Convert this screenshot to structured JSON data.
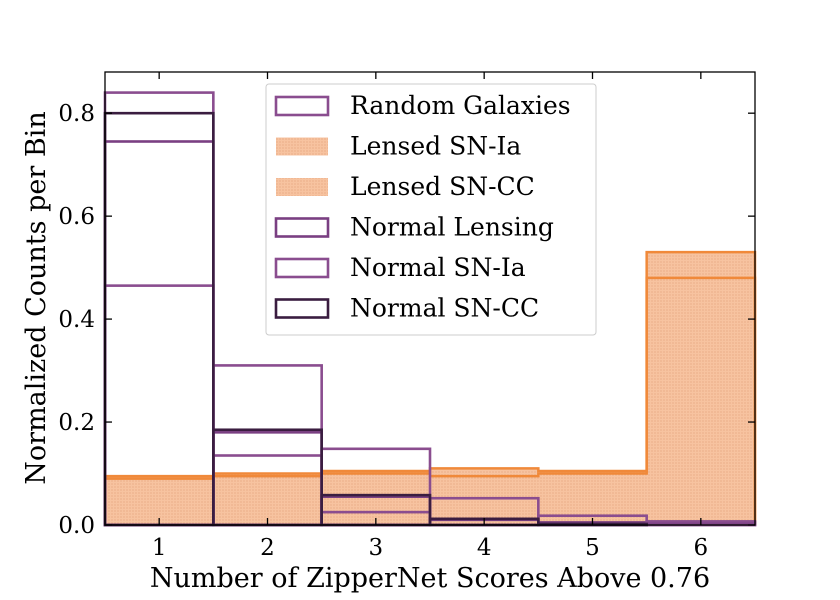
{
  "chart_data": {
    "type": "histogram",
    "title": "",
    "xlabel": "Number of ZipperNet Scores Above 0.76",
    "ylabel": "Normalized Counts per Bin",
    "xlim": [
      0.5,
      6.5
    ],
    "ylim": [
      0.0,
      0.88
    ],
    "x_ticks": [
      1,
      2,
      3,
      4,
      5,
      6
    ],
    "y_ticks": [
      0.0,
      0.2,
      0.4,
      0.6,
      0.8
    ],
    "bins": [
      1,
      2,
      3,
      4,
      5,
      6
    ],
    "legend_position": "upper-center",
    "series": [
      {
        "name": "Random Galaxies",
        "style": "step",
        "color": "#8a4d8f",
        "values": [
          0.84,
          0.135,
          0.025,
          0.0,
          0.0,
          0.0
        ]
      },
      {
        "name": "Lensed SN-Ia",
        "style": "filled-dotted",
        "color": "#f0893a",
        "fill": "#f7c4a0",
        "values": [
          0.095,
          0.1,
          0.105,
          0.11,
          0.105,
          0.53
        ]
      },
      {
        "name": "Lensed SN-CC",
        "style": "filled-dotted",
        "color": "#f0893a",
        "fill": "#f7c4a0",
        "values": [
          0.09,
          0.095,
          0.1,
          0.095,
          0.1,
          0.48
        ]
      },
      {
        "name": "Normal Lensing",
        "style": "step",
        "color": "#7a3f82",
        "values": [
          0.745,
          0.18,
          0.055,
          0.01,
          0.005,
          0.005
        ]
      },
      {
        "name": "Normal SN-Ia",
        "style": "step",
        "color": "#8a4d8f",
        "values": [
          0.465,
          0.31,
          0.148,
          0.052,
          0.018,
          0.007
        ]
      },
      {
        "name": "Normal SN-CC",
        "style": "step",
        "color": "#3a1d40",
        "values": [
          0.8,
          0.185,
          0.058,
          0.012,
          0.002,
          0.0
        ]
      }
    ]
  }
}
